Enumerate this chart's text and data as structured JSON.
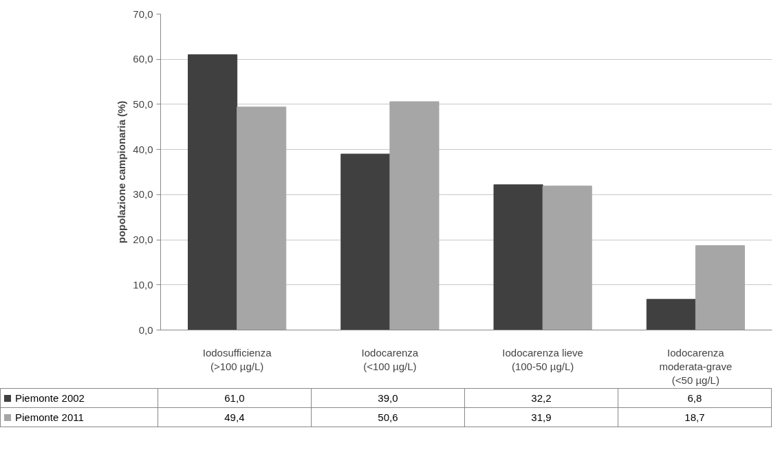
{
  "chart_data": {
    "type": "bar",
    "ylabel": "popolazione campionaria (%)",
    "categories": [
      "Iodosufficienza\n(>100 µg/L)",
      "Iodocarenza\n(<100 µg/L)",
      "Iodocarenza lieve\n(100-50 µg/L)",
      "Iodocarenza\nmoderata-grave\n(<50 µg/L)"
    ],
    "series": [
      {
        "name": "Piemonte 2002",
        "color": "#404040",
        "values": [
          61.0,
          39.0,
          32.2,
          6.8
        ],
        "value_labels": [
          "61,0",
          "39,0",
          "32,2",
          "6,8"
        ]
      },
      {
        "name": "Piemonte 2011",
        "color": "#a6a6a6",
        "values": [
          49.4,
          50.6,
          31.9,
          18.7
        ],
        "value_labels": [
          "49,4",
          "50,6",
          "31,9",
          "18,7"
        ]
      }
    ],
    "ylim": [
      0,
      70
    ],
    "yticks": [
      {
        "value": 0,
        "label": "0,0"
      },
      {
        "value": 10,
        "label": "10,0"
      },
      {
        "value": 20,
        "label": "20,0"
      },
      {
        "value": 30,
        "label": "30,0"
      },
      {
        "value": 40,
        "label": "40,0"
      },
      {
        "value": 50,
        "label": "50,0"
      },
      {
        "value": 60,
        "label": "60,0"
      },
      {
        "value": 70,
        "label": "70,0"
      }
    ],
    "grid": "y",
    "legend": "bottom"
  }
}
